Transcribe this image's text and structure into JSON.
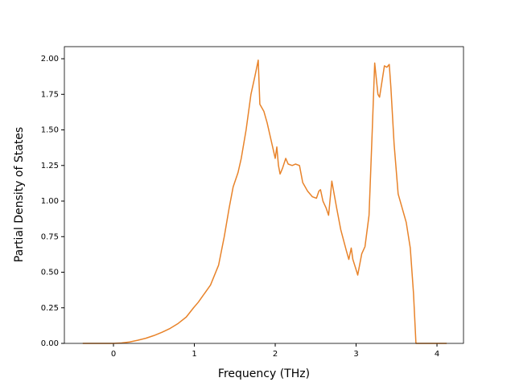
{
  "chart_data": {
    "type": "line",
    "xlabel": "Frequency (THz)",
    "ylabel": "Partial Density of States",
    "x": [
      -0.38,
      0,
      0.1,
      0.2,
      0.3,
      0.4,
      0.5,
      0.6,
      0.7,
      0.8,
      0.9,
      0.99,
      1.05,
      1.1,
      1.2,
      1.3,
      1.37,
      1.43,
      1.48,
      1.54,
      1.58,
      1.64,
      1.7,
      1.75,
      1.79,
      1.81,
      1.86,
      1.9,
      1.94,
      1.98,
      2.0,
      2.02,
      2.04,
      2.06,
      2.09,
      2.13,
      2.16,
      2.21,
      2.25,
      2.3,
      2.34,
      2.4,
      2.46,
      2.51,
      2.54,
      2.56,
      2.59,
      2.63,
      2.66,
      2.7,
      2.76,
      2.81,
      2.88,
      2.91,
      2.94,
      2.96,
      3.01,
      3.02,
      3.07,
      3.11,
      3.16,
      3.2,
      3.23,
      3.27,
      3.29,
      3.35,
      3.38,
      3.41,
      3.43,
      3.47,
      3.52,
      3.62,
      3.67,
      3.71,
      3.74,
      4.12
    ],
    "series": [
      {
        "color": "#e8832a",
        "values": [
          0,
          0,
          0.003,
          0.01,
          0.022,
          0.036,
          0.055,
          0.078,
          0.105,
          0.14,
          0.185,
          0.25,
          0.29,
          0.33,
          0.41,
          0.55,
          0.75,
          0.95,
          1.1,
          1.2,
          1.3,
          1.5,
          1.75,
          1.88,
          1.99,
          1.68,
          1.63,
          1.55,
          1.45,
          1.35,
          1.3,
          1.38,
          1.25,
          1.19,
          1.23,
          1.3,
          1.26,
          1.25,
          1.26,
          1.25,
          1.13,
          1.07,
          1.03,
          1.02,
          1.07,
          1.08,
          1.0,
          0.95,
          0.9,
          1.14,
          0.95,
          0.8,
          0.65,
          0.59,
          0.67,
          0.59,
          0.5,
          0.48,
          0.63,
          0.68,
          0.9,
          1.5,
          1.97,
          1.75,
          1.73,
          1.95,
          1.94,
          1.96,
          1.8,
          1.4,
          1.05,
          0.85,
          0.67,
          0.35,
          0,
          0
        ]
      }
    ],
    "xlim": [
      -0.607,
      4.328
    ],
    "ylim": [
      0,
      2.085
    ],
    "xticks": [
      0,
      1,
      2,
      3,
      4
    ],
    "yticks": [
      {
        "value": 0,
        "label": "0.00"
      },
      {
        "value": 0.25,
        "label": "0.25"
      },
      {
        "value": 0.5,
        "label": "0.50"
      },
      {
        "value": 0.75,
        "label": "0.75"
      },
      {
        "value": 1,
        "label": "1.00"
      },
      {
        "value": 1.25,
        "label": "1.25"
      },
      {
        "value": 1.5,
        "label": "1.50"
      },
      {
        "value": 1.75,
        "label": "1.75"
      },
      {
        "value": 2,
        "label": "2.00"
      }
    ]
  }
}
